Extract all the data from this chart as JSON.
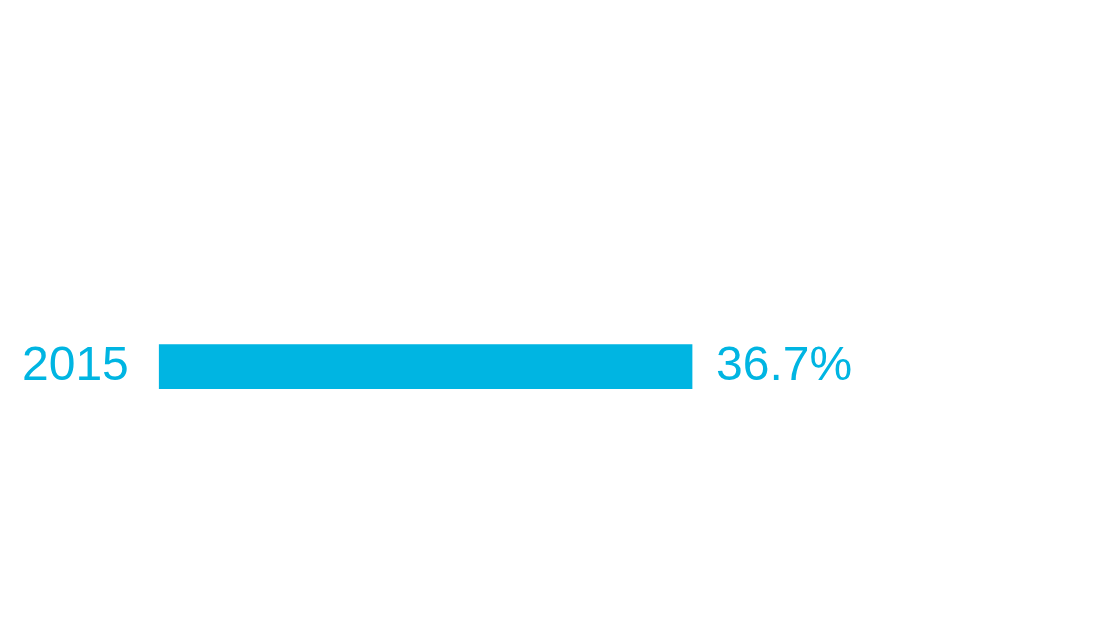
{
  "chart_data": {
    "type": "bar",
    "orientation": "horizontal",
    "categories": [
      "2015"
    ],
    "values": [
      36.7
    ],
    "color": "#00b5e2",
    "data_labels": true,
    "value_labels": [
      "36.7%"
    ]
  }
}
